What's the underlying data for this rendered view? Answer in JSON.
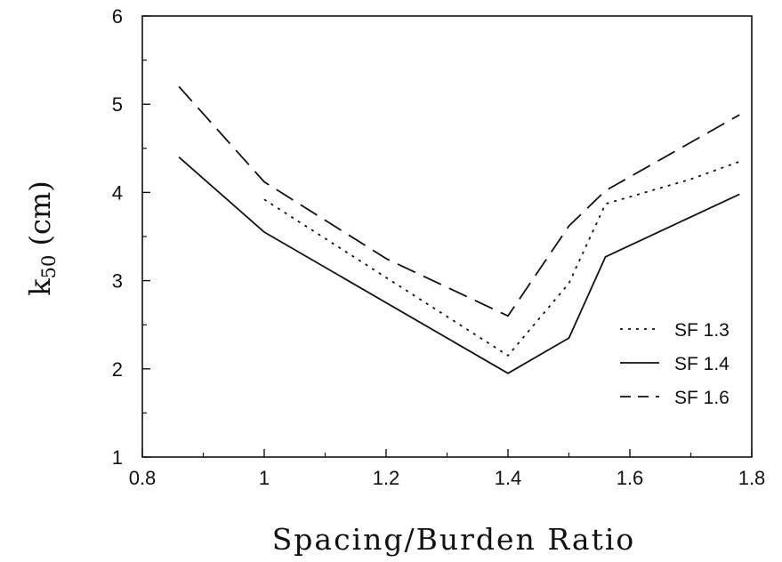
{
  "chart_data": {
    "type": "line",
    "title": "",
    "xlabel": "Spacing/Burden Ratio",
    "ylabel_main": "k",
    "ylabel_sub": "50",
    "ylabel_rest": " (cm)",
    "xlim": [
      0.8,
      1.8
    ],
    "ylim": [
      1,
      6
    ],
    "x_ticks": [
      0.8,
      1,
      1.2,
      1.4,
      1.6,
      1.8
    ],
    "x_tick_labels": [
      "0.8",
      "1",
      "1.2",
      "1.4",
      "1.6",
      "1.8"
    ],
    "y_ticks": [
      1,
      2,
      3,
      4,
      5,
      6
    ],
    "y_tick_labels": [
      "1",
      "2",
      "3",
      "4",
      "5",
      "6"
    ],
    "grid": false,
    "legend_position": "bottom-right",
    "series": [
      {
        "name": "SF 1.3",
        "style": "dotted",
        "x": [
          1.0,
          1.4,
          1.5,
          1.56,
          1.7,
          1.78
        ],
        "y": [
          3.92,
          2.15,
          2.97,
          3.87,
          4.15,
          4.35
        ]
      },
      {
        "name": "SF 1.4",
        "style": "solid",
        "x": [
          0.86,
          1.0,
          1.4,
          1.5,
          1.56,
          1.78
        ],
        "y": [
          4.4,
          3.55,
          1.95,
          2.35,
          3.27,
          3.98
        ]
      },
      {
        "name": "SF 1.6",
        "style": "dashed",
        "x": [
          0.86,
          1.0,
          1.2,
          1.4,
          1.5,
          1.56,
          1.78
        ],
        "y": [
          5.2,
          4.12,
          3.25,
          2.6,
          3.62,
          4.02,
          4.88
        ]
      }
    ]
  }
}
